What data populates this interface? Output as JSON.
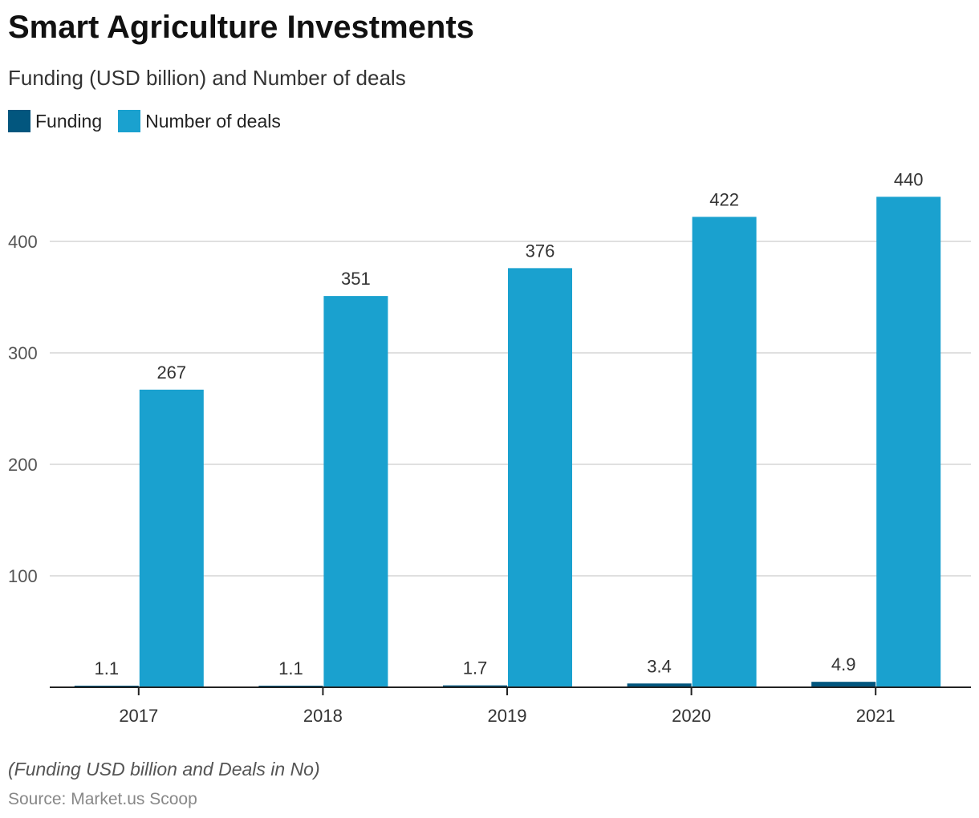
{
  "title": "Smart Agriculture Investments",
  "subtitle": "Funding (USD billion) and Number of deals",
  "note": "(Funding USD billion and Deals in No)",
  "source": "Source: Market.us Scoop",
  "colors": {
    "funding": "#02567E",
    "deals": "#1AA1CF"
  },
  "chart_data": {
    "type": "bar",
    "title": "Smart Agriculture Investments",
    "categories": [
      "2017",
      "2018",
      "2019",
      "2020",
      "2021"
    ],
    "series": [
      {
        "name": "Funding",
        "values": [
          1.1,
          1.1,
          1.7,
          3.4,
          4.9
        ]
      },
      {
        "name": "Number of deals",
        "values": [
          267,
          351,
          376,
          422,
          440
        ]
      }
    ],
    "yticks": [
      100,
      200,
      300,
      400
    ],
    "ylim": [
      0,
      470
    ],
    "grid": true,
    "legend": "top-left"
  }
}
